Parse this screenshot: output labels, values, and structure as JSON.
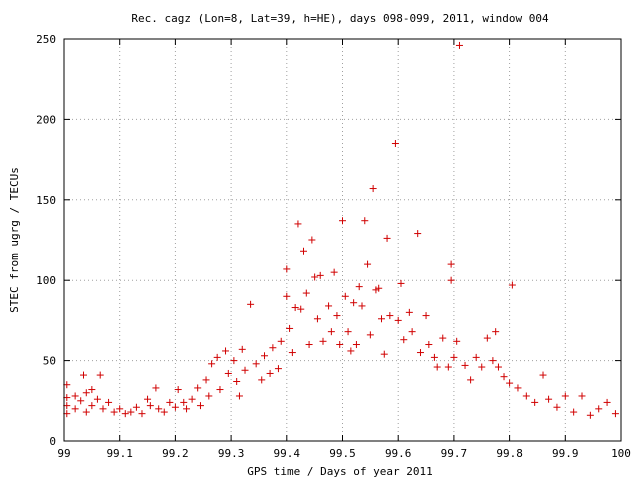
{
  "chart_data": {
    "type": "scatter",
    "title": "Rec. cagz (Lon=8, Lat=39, h=HE), days 098-099, 2011, window 004",
    "xlabel": "GPS time / Days of year 2011",
    "ylabel": "STEC from ugrg / TECUs",
    "xlim": [
      99,
      100
    ],
    "ylim": [
      0,
      250
    ],
    "grid": true,
    "marker": "plus",
    "colors": {
      "points": "#d00000",
      "grid": "#a0a0a0",
      "axis": "#000000"
    },
    "x_ticks": [
      "99",
      "99.1",
      "99.2",
      "99.3",
      "99.4",
      "99.5",
      "99.6",
      "99.7",
      "99.8",
      "99.9",
      "100"
    ],
    "y_ticks": [
      "0",
      "50",
      "100",
      "150",
      "200",
      "250"
    ],
    "series": [
      {
        "points": [
          [
            99.005,
            35
          ],
          [
            99.005,
            27
          ],
          [
            99.005,
            22
          ],
          [
            99.005,
            17
          ],
          [
            99.02,
            28
          ],
          [
            99.02,
            20
          ],
          [
            99.03,
            25
          ],
          [
            99.035,
            41
          ],
          [
            99.04,
            30
          ],
          [
            99.04,
            18
          ],
          [
            99.05,
            32
          ],
          [
            99.05,
            22
          ],
          [
            99.06,
            26
          ],
          [
            99.065,
            41
          ],
          [
            99.07,
            20
          ],
          [
            99.08,
            24
          ],
          [
            99.09,
            18
          ],
          [
            99.1,
            20
          ],
          [
            99.11,
            17
          ],
          [
            99.12,
            18
          ],
          [
            99.13,
            21
          ],
          [
            99.14,
            17
          ],
          [
            99.15,
            26
          ],
          [
            99.155,
            22
          ],
          [
            99.165,
            33
          ],
          [
            99.17,
            20
          ],
          [
            99.18,
            18
          ],
          [
            99.19,
            24
          ],
          [
            99.2,
            21
          ],
          [
            99.205,
            32
          ],
          [
            99.215,
            24
          ],
          [
            99.22,
            20
          ],
          [
            99.23,
            26
          ],
          [
            99.24,
            33
          ],
          [
            99.245,
            22
          ],
          [
            99.255,
            38
          ],
          [
            99.26,
            28
          ],
          [
            99.265,
            48
          ],
          [
            99.275,
            52
          ],
          [
            99.28,
            32
          ],
          [
            99.29,
            56
          ],
          [
            99.295,
            42
          ],
          [
            99.305,
            50
          ],
          [
            99.31,
            37
          ],
          [
            99.315,
            28
          ],
          [
            99.32,
            57
          ],
          [
            99.325,
            44
          ],
          [
            99.335,
            85
          ],
          [
            99.345,
            48
          ],
          [
            99.355,
            38
          ],
          [
            99.36,
            53
          ],
          [
            99.37,
            42
          ],
          [
            99.375,
            58
          ],
          [
            99.385,
            45
          ],
          [
            99.39,
            62
          ],
          [
            99.4,
            107
          ],
          [
            99.4,
            90
          ],
          [
            99.405,
            70
          ],
          [
            99.41,
            55
          ],
          [
            99.415,
            83
          ],
          [
            99.42,
            135
          ],
          [
            99.425,
            82
          ],
          [
            99.43,
            118
          ],
          [
            99.435,
            92
          ],
          [
            99.44,
            60
          ],
          [
            99.445,
            125
          ],
          [
            99.45,
            102
          ],
          [
            99.455,
            76
          ],
          [
            99.46,
            103
          ],
          [
            99.465,
            62
          ],
          [
            99.475,
            84
          ],
          [
            99.48,
            68
          ],
          [
            99.485,
            105
          ],
          [
            99.49,
            78
          ],
          [
            99.495,
            60
          ],
          [
            99.5,
            137
          ],
          [
            99.505,
            90
          ],
          [
            99.51,
            68
          ],
          [
            99.515,
            56
          ],
          [
            99.52,
            86
          ],
          [
            99.525,
            60
          ],
          [
            99.53,
            96
          ],
          [
            99.535,
            84
          ],
          [
            99.54,
            137
          ],
          [
            99.545,
            110
          ],
          [
            99.55,
            66
          ],
          [
            99.555,
            157
          ],
          [
            99.56,
            94
          ],
          [
            99.565,
            95
          ],
          [
            99.57,
            76
          ],
          [
            99.575,
            54
          ],
          [
            99.58,
            126
          ],
          [
            99.585,
            78
          ],
          [
            99.595,
            185
          ],
          [
            99.6,
            75
          ],
          [
            99.605,
            98
          ],
          [
            99.61,
            63
          ],
          [
            99.62,
            80
          ],
          [
            99.625,
            68
          ],
          [
            99.635,
            129
          ],
          [
            99.64,
            55
          ],
          [
            99.65,
            78
          ],
          [
            99.655,
            60
          ],
          [
            99.665,
            52
          ],
          [
            99.67,
            46
          ],
          [
            99.68,
            64
          ],
          [
            99.69,
            46
          ],
          [
            99.695,
            110
          ],
          [
            99.695,
            100
          ],
          [
            99.7,
            52
          ],
          [
            99.705,
            62
          ],
          [
            99.71,
            246
          ],
          [
            99.72,
            47
          ],
          [
            99.73,
            38
          ],
          [
            99.74,
            52
          ],
          [
            99.75,
            46
          ],
          [
            99.76,
            64
          ],
          [
            99.77,
            50
          ],
          [
            99.775,
            68
          ],
          [
            99.78,
            46
          ],
          [
            99.79,
            40
          ],
          [
            99.8,
            36
          ],
          [
            99.805,
            97
          ],
          [
            99.815,
            33
          ],
          [
            99.83,
            28
          ],
          [
            99.845,
            24
          ],
          [
            99.86,
            41
          ],
          [
            99.87,
            26
          ],
          [
            99.885,
            21
          ],
          [
            99.9,
            28
          ],
          [
            99.915,
            18
          ],
          [
            99.93,
            28
          ],
          [
            99.945,
            16
          ],
          [
            99.96,
            20
          ],
          [
            99.975,
            24
          ],
          [
            99.99,
            17
          ]
        ]
      }
    ]
  }
}
